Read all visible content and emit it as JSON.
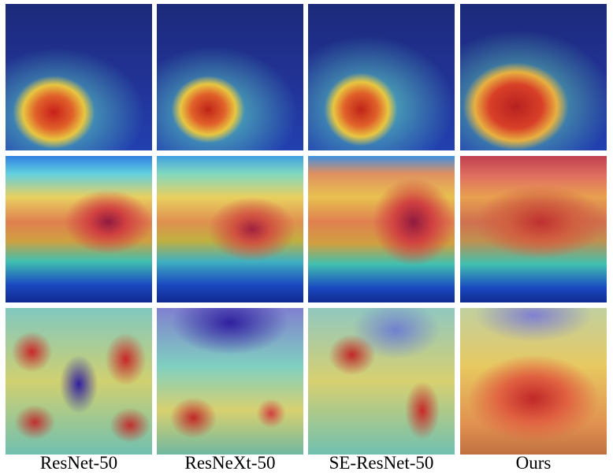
{
  "column_labels": [
    "ResNet-50",
    "ResNeXt-50",
    "SE-ResNet-50",
    "Ours"
  ]
}
